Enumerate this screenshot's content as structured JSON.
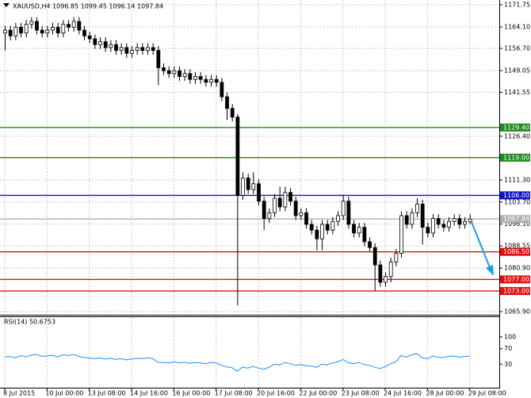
{
  "chart_data": {
    "type": "candlestick",
    "title": "XAUUSD,H4  1096.85 1099.45 1096.14 1097.84",
    "categories": [
      "8 Jul 2015",
      null,
      null,
      null,
      null,
      null,
      null,
      null,
      "10 Jul 00:00",
      null,
      null,
      null,
      null,
      null,
      null,
      null,
      "13 Jul 08:00",
      null,
      null,
      null,
      null,
      null,
      null,
      null,
      "14 Jul 16:00",
      null,
      null,
      null,
      null,
      null,
      null,
      null,
      "16 Jul 00:00",
      null,
      null,
      null,
      null,
      null,
      null,
      null,
      "17 Jul 08:00",
      null,
      null,
      null,
      null,
      null,
      null,
      null,
      "20 Jul 16:00",
      null,
      null,
      null,
      null,
      null,
      null,
      null,
      "22 Jul 00:00",
      null,
      null,
      null,
      null,
      null,
      null,
      null,
      "23 Jul 08:00",
      null,
      null,
      null,
      null,
      null,
      null,
      null,
      "24 Jul 16:00",
      null,
      null,
      null,
      null,
      null,
      null,
      null,
      "28 Jul 00:00",
      null,
      null,
      null,
      null,
      null,
      null,
      null,
      "29 Jul 08:00"
    ],
    "open": [
      1162,
      1163,
      1161,
      1164,
      1162,
      1165,
      1166,
      1163,
      1162,
      1163,
      1164,
      1162,
      1165,
      1164,
      1166,
      1163,
      1161,
      1160,
      1158,
      1159,
      1157,
      1158,
      1156,
      1157,
      1155,
      1156,
      1157,
      1156,
      1157,
      1156,
      1150,
      1149,
      1148,
      1149,
      1147,
      1148,
      1146,
      1147,
      1146,
      1145,
      1146,
      1145,
      1140,
      1136,
      1133,
      1106,
      1112,
      1108,
      1110,
      1104,
      1098,
      1100,
      1105,
      1102,
      1107,
      1104,
      1099,
      1100,
      1096,
      1094,
      1091,
      1096,
      1094,
      1097,
      1099,
      1104,
      1096,
      1093,
      1095,
      1090,
      1088,
      1082,
      1076,
      1078,
      1083,
      1086,
      1099,
      1096,
      1100,
      1103,
      1095,
      1093,
      1098,
      1096,
      1095,
      1097,
      1098,
      1096,
      1096.85
    ],
    "high": [
      1164.5,
      1164.5,
      1165.5,
      1165.5,
      1166.5,
      1167.5,
      1167.5,
      1164.5,
      1164.5,
      1165.5,
      1165.5,
      1166.5,
      1166.5,
      1167.5,
      1167.5,
      1164.5,
      1162.5,
      1161.5,
      1160.5,
      1160.5,
      1159.5,
      1159.5,
      1158.5,
      1158.5,
      1157.5,
      1158.5,
      1158.5,
      1158.5,
      1158.5,
      1157.5,
      1151.5,
      1150.5,
      1150.5,
      1150.5,
      1149.5,
      1149.5,
      1148.5,
      1148.5,
      1147.5,
      1147.5,
      1147.5,
      1146.5,
      1141.5,
      1137.5,
      1134,
      1114,
      1113.5,
      1114,
      1111.5,
      1105.5,
      1101.5,
      1106.5,
      1109,
      1109,
      1108.5,
      1105.5,
      1101.5,
      1101.5,
      1097.5,
      1095.5,
      1097.5,
      1097.5,
      1098.5,
      1100.5,
      1106,
      1105.5,
      1097.5,
      1096.5,
      1096.5,
      1091.5,
      1089.5,
      1083.5,
      1079.5,
      1084.5,
      1087.5,
      1100.5,
      1100.5,
      1101.5,
      1105,
      1104.5,
      1096.5,
      1099.5,
      1099.5,
      1097.5,
      1098.5,
      1099.5,
      1099.5,
      1098.5,
      1099.45
    ],
    "low": [
      1156,
      1159.5,
      1159.5,
      1160.5,
      1160.5,
      1163.5,
      1161.5,
      1160.5,
      1160.5,
      1161.5,
      1160.5,
      1160.5,
      1162.5,
      1162.5,
      1161.5,
      1159.5,
      1158.5,
      1156.5,
      1156.5,
      1155.5,
      1155.5,
      1154.5,
      1154.5,
      1153.5,
      1153.5,
      1154.5,
      1154.5,
      1154.5,
      1154.5,
      1144,
      1147.5,
      1146.5,
      1146.5,
      1145.5,
      1145.5,
      1144.5,
      1144.5,
      1144.5,
      1143.5,
      1143.5,
      1143.5,
      1138.5,
      1132,
      1131.5,
      1068,
      1104.5,
      1106.5,
      1106.5,
      1102.5,
      1094,
      1096.5,
      1098.5,
      1100.5,
      1100.5,
      1102.5,
      1097.5,
      1097.5,
      1094.5,
      1092.5,
      1087,
      1087,
      1092.5,
      1092.5,
      1095.5,
      1097.5,
      1094.5,
      1091.5,
      1091.5,
      1088.5,
      1086.5,
      1073,
      1074.5,
      1074.5,
      1076,
      1081.5,
      1084.5,
      1094.5,
      1094.5,
      1098.5,
      1089,
      1091.5,
      1091.5,
      1094.5,
      1093.5,
      1093.5,
      1095.5,
      1094.5,
      1094.5,
      1096.14
    ],
    "close": [
      1163,
      1161,
      1164,
      1162,
      1165,
      1166,
      1163,
      1162,
      1163,
      1164,
      1162,
      1165,
      1164,
      1166,
      1163,
      1161,
      1160,
      1158,
      1159,
      1157,
      1158,
      1156,
      1157,
      1155,
      1156,
      1157,
      1156,
      1157,
      1156,
      1150,
      1149,
      1148,
      1149,
      1147,
      1148,
      1146,
      1147,
      1146,
      1145,
      1146,
      1145,
      1140,
      1136,
      1133,
      1106,
      1112,
      1108,
      1110,
      1104,
      1098,
      1100,
      1105,
      1102,
      1107,
      1104,
      1099,
      1100,
      1096,
      1094,
      1091,
      1096,
      1094,
      1097,
      1099,
      1104,
      1096,
      1093,
      1095,
      1090,
      1088,
      1082,
      1076,
      1078,
      1083,
      1086,
      1099,
      1096,
      1100,
      1103,
      1095,
      1093,
      1098,
      1096,
      1095,
      1097,
      1098,
      1096,
      1097,
      1097.84
    ],
    "ylim": [
      1065.9,
      1171.75
    ],
    "yticks": [
      1171.75,
      {
        "value": 1164.1,
        "label": "1164.10"
      },
      {
        "value": 1156.7,
        "label": "1156.70"
      },
      {
        "value": 1149.05,
        "label": "1149.05"
      },
      1141.55,
      {
        "value": 1126.4,
        "label": "1126.40"
      },
      {
        "value": 1111.3,
        "label": "1111.30"
      },
      {
        "value": 1103.7,
        "label": "1103.70"
      },
      {
        "value": 1096.1,
        "label": "1096.10"
      },
      1088.55,
      {
        "value": 1080.9,
        "label": "1080.90"
      },
      {
        "value": 1065.9,
        "label": "1065.90"
      }
    ],
    "grid": true,
    "levels": [
      {
        "value": 1129.4,
        "label": "1129.40",
        "color": "#1f8a1f"
      },
      {
        "value": 1119,
        "label": "1119.00",
        "color": "#1f8a1f"
      },
      {
        "value": 1106,
        "label": "1106.00",
        "color": "#1010c8"
      },
      {
        "value": 1097.84,
        "label": "1097.84",
        "color": "#b0b0b0"
      },
      {
        "value": 1086.5,
        "label": "1086.50",
        "color": "#e01010"
      },
      {
        "value": 1077,
        "label": "1077.00",
        "color": "#e01010"
      },
      {
        "value": 1073,
        "label": "1073.00",
        "color": "#e01010"
      }
    ],
    "rsi": {
      "label": "RSI(14) 50.6753",
      "color": "#1e90ff",
      "ylim": [
        0,
        100
      ],
      "yticks": [
        100,
        70,
        30
      ],
      "values": [
        48,
        50,
        46,
        52,
        49,
        53,
        55,
        50,
        51,
        53,
        49,
        54,
        52,
        55,
        50,
        47,
        46,
        44,
        46,
        43,
        45,
        42,
        44,
        41,
        43,
        45,
        44,
        46,
        44,
        35,
        34,
        33,
        36,
        33,
        35,
        32,
        34,
        33,
        31,
        34,
        33,
        27,
        23,
        21,
        12,
        22,
        20,
        24,
        20,
        17,
        22,
        30,
        28,
        34,
        31,
        27,
        29,
        26,
        25,
        22,
        30,
        28,
        33,
        36,
        42,
        34,
        31,
        34,
        29,
        27,
        22,
        19,
        23,
        31,
        36,
        52,
        48,
        54,
        57,
        46,
        44,
        51,
        48,
        47,
        50,
        51,
        48,
        50,
        50.6753
      ]
    }
  }
}
